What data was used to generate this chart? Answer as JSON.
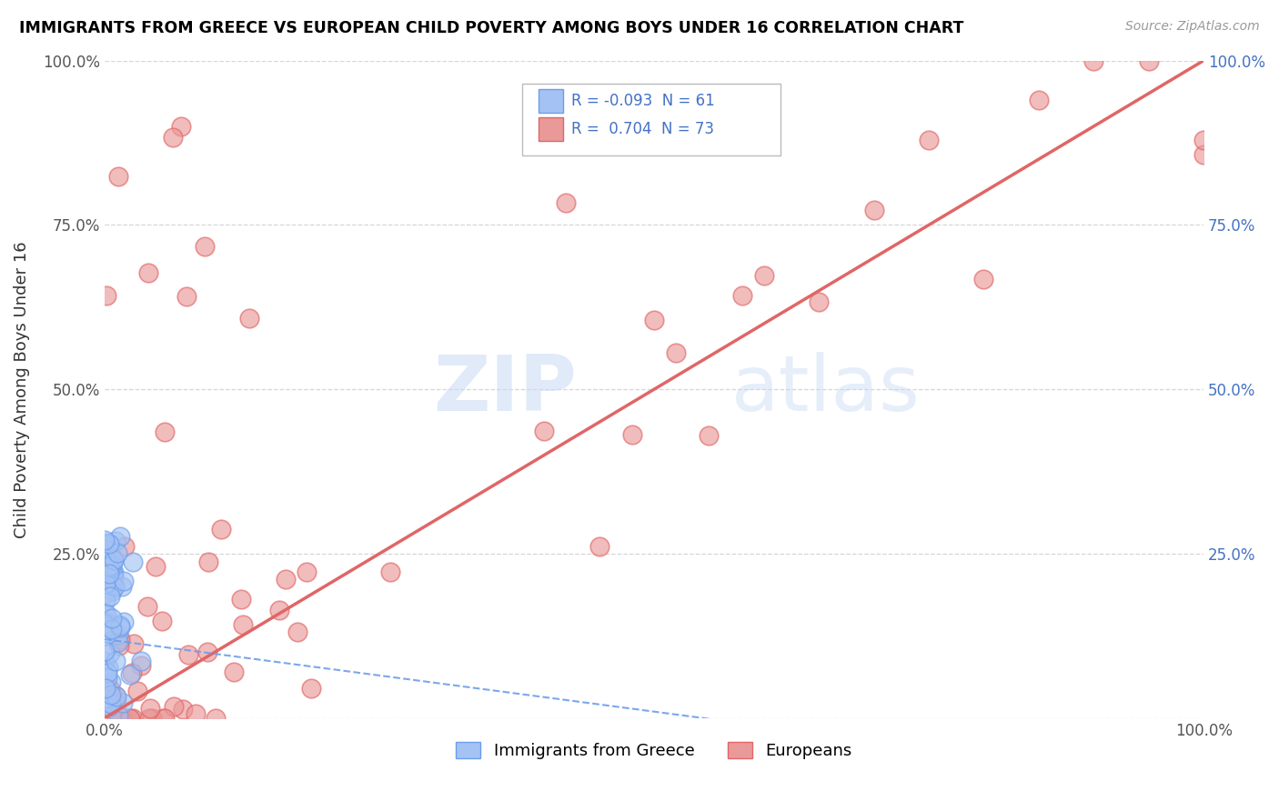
{
  "title": "IMMIGRANTS FROM GREECE VS EUROPEAN CHILD POVERTY AMONG BOYS UNDER 16 CORRELATION CHART",
  "source": "Source: ZipAtlas.com",
  "ylabel": "Child Poverty Among Boys Under 16",
  "legend_label1": "Immigrants from Greece",
  "legend_label2": "Europeans",
  "R1": "-0.093",
  "N1": "61",
  "R2": "0.704",
  "N2": "73",
  "scatter_color1": "#a4c2f4",
  "scatter_color2": "#ea9999",
  "line_color1": "#6d9eeb",
  "line_color2": "#e06666",
  "watermark_zip": "ZIP",
  "watermark_atlas": "atlas",
  "background_color": "#ffffff",
  "grid_color": "#cccccc",
  "title_color": "#000000",
  "source_color": "#999999",
  "legend_R_color": "#4472c4",
  "xlim": [
    0.0,
    1.0
  ],
  "ylim": [
    0.0,
    1.0
  ],
  "blue_line_x": [
    0.0,
    1.0
  ],
  "blue_line_y": [
    0.12,
    -0.1
  ],
  "pink_line_x": [
    0.0,
    1.0
  ],
  "pink_line_y": [
    0.0,
    1.0
  ]
}
